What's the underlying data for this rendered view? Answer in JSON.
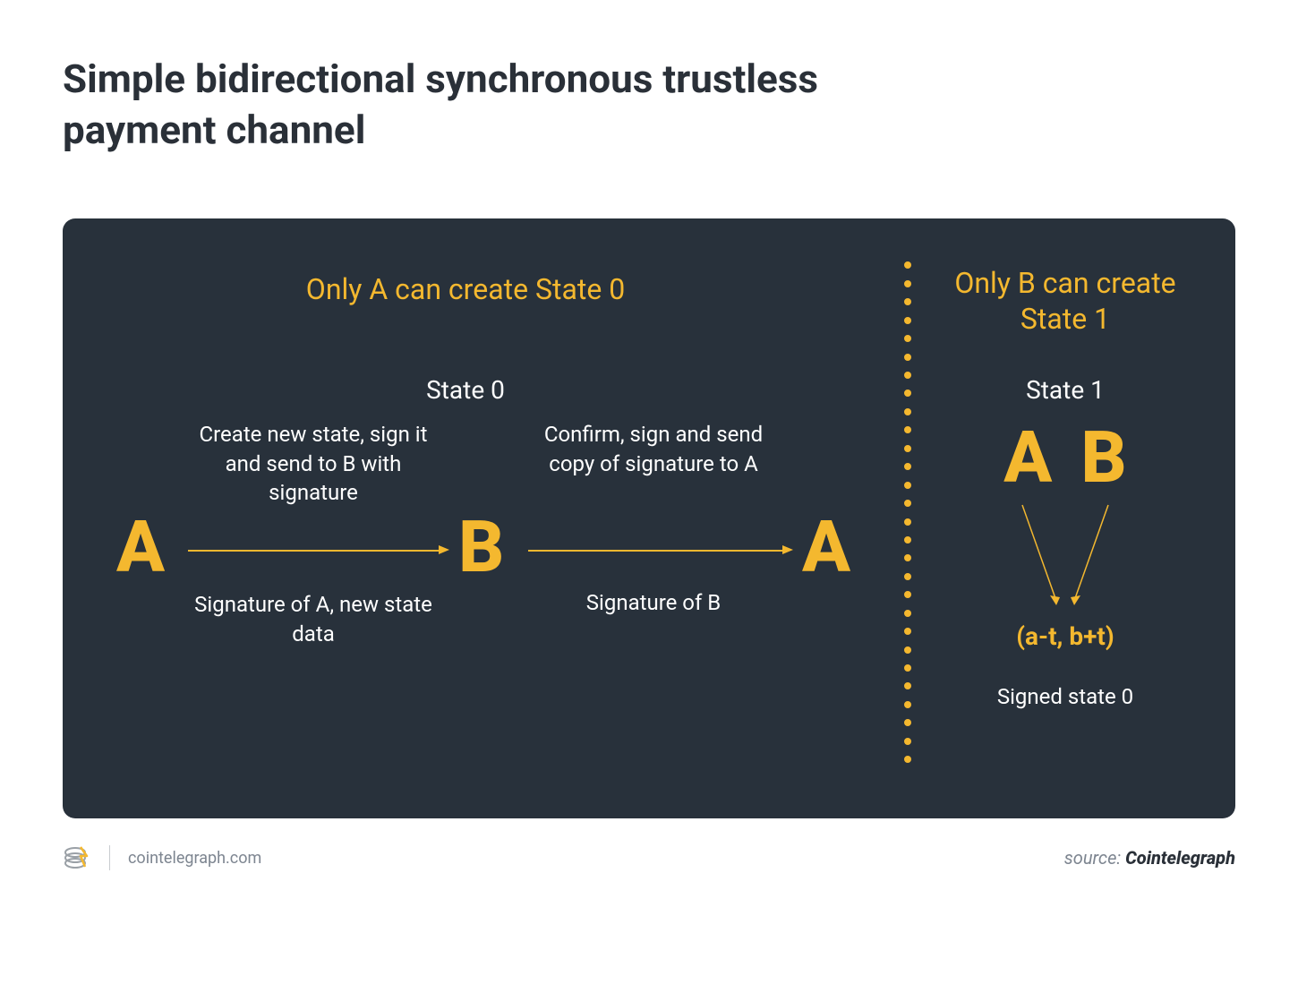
{
  "title": "Simple bidirectional synchronous trustless payment channel",
  "panel": {
    "bg_color": "#28313b",
    "accent_color": "#f4b82f",
    "text_color": "#ffffff",
    "border_radius": 14
  },
  "left": {
    "header": "Only A can create State 0",
    "state_label": "State 0",
    "step1_desc": "Create new state, sign it and send to B with signature",
    "step2_desc": "Confirm, sign and send copy of signature to A",
    "nodes": [
      "A",
      "B",
      "A"
    ],
    "below1": "Signature of A, new state data",
    "below2": "Signature of B",
    "arrows": {
      "stroke": "#f4b82f",
      "width": 2
    }
  },
  "right": {
    "header": "Only B can create State 1",
    "state_label": "State 1",
    "nodes": [
      "A",
      "B"
    ],
    "tuple": "(a-t, b+t)",
    "signed_label": "Signed state 0",
    "converge_arrows": {
      "stroke": "#f4b82f",
      "width": 1.5
    }
  },
  "divider": {
    "dot_color": "#f4b82f",
    "dot_count": 28
  },
  "footer": {
    "site": "cointelegraph.com",
    "source_prefix": "source: ",
    "source_brand": "Cointelegraph",
    "logo_primary": "#9aa0a6",
    "logo_accent": "#f4b82f"
  },
  "typography": {
    "title_fontsize": 44,
    "header_fontsize": 32,
    "body_fontsize": 24,
    "big_letter_fontsize": 80
  }
}
